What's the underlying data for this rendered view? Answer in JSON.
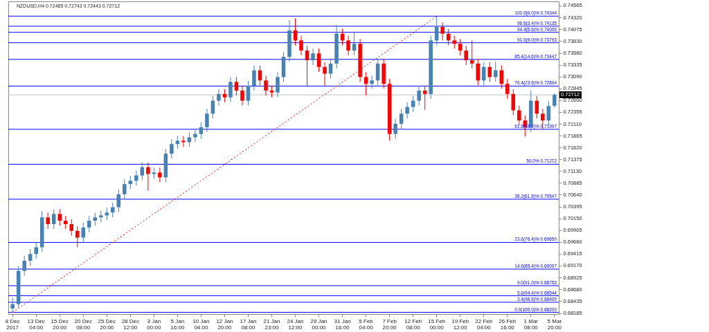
{
  "chart_data": {
    "type": "candlestick",
    "title": "NZDUSD,H4  0.72485 0.72743 0.72443 0.72712",
    "categories": [
      "8 Dec 2017",
      null,
      null,
      null,
      "13 Dec 04:00",
      null,
      null,
      null,
      "15 Dec 20:00",
      null,
      null,
      null,
      "20 Dec 08:00",
      null,
      null,
      null,
      "25 Dec 20:00",
      null,
      null,
      null,
      "28 Dec 12:00",
      null,
      null,
      null,
      "3 Jan 00:00",
      null,
      null,
      null,
      "5 Jan 16:00",
      null,
      null,
      null,
      "10 Jan 04:00",
      null,
      null,
      null,
      "12 Jan 20:00",
      null,
      null,
      null,
      "17 Jan 08:00",
      null,
      null,
      null,
      "21 Jan 23:00",
      null,
      null,
      null,
      "24 Jan 12:00",
      null,
      null,
      null,
      "29 Jan 00:00",
      null,
      null,
      null,
      "31 Jan 16:00",
      null,
      null,
      null,
      "5 Feb 04:00",
      null,
      null,
      null,
      "7 Feb 20:00",
      null,
      null,
      null,
      "12 Feb 08:00",
      null,
      null,
      null,
      "15 Feb 00:00",
      null,
      null,
      null,
      "19 Feb 12:00",
      null,
      null,
      null,
      "22 Feb 04:00",
      null,
      null,
      null,
      "26 Feb 16:00",
      null,
      null,
      null,
      "1 Mar 08:00",
      null,
      null,
      null,
      "5 Mar 20:00"
    ],
    "ohlc": [
      [
        0.6828,
        0.685,
        0.682,
        0.6837
      ],
      [
        0.6837,
        0.6916,
        0.683,
        0.6906
      ],
      [
        0.6906,
        0.6937,
        0.6896,
        0.6927
      ],
      [
        0.6927,
        0.6951,
        0.6917,
        0.6941
      ],
      [
        0.6941,
        0.6965,
        0.6931,
        0.6955
      ],
      [
        0.6955,
        0.703,
        0.6945,
        0.7017
      ],
      [
        0.7017,
        0.7027,
        0.6993,
        0.7003
      ],
      [
        0.7003,
        0.7034,
        0.6993,
        0.7024
      ],
      [
        0.7024,
        0.7034,
        0.7,
        0.701
      ],
      [
        0.701,
        0.702,
        0.6993,
        0.7003
      ],
      [
        0.7003,
        0.7013,
        0.6979,
        0.6989
      ],
      [
        0.6989,
        0.6999,
        0.6955,
        0.6975
      ],
      [
        0.6975,
        0.7006,
        0.6965,
        0.6996
      ],
      [
        0.6996,
        0.702,
        0.6986,
        0.701
      ],
      [
        0.701,
        0.7027,
        0.7,
        0.7017
      ],
      [
        0.7017,
        0.7031,
        0.7007,
        0.7021
      ],
      [
        0.7021,
        0.7037,
        0.7011,
        0.7027
      ],
      [
        0.7027,
        0.7048,
        0.7017,
        0.7038
      ],
      [
        0.7038,
        0.7075,
        0.7028,
        0.7065
      ],
      [
        0.7065,
        0.7096,
        0.7055,
        0.7086
      ],
      [
        0.7086,
        0.7103,
        0.7076,
        0.7093
      ],
      [
        0.7093,
        0.7114,
        0.7083,
        0.7104
      ],
      [
        0.7104,
        0.7131,
        0.7094,
        0.7121
      ],
      [
        0.7121,
        0.7131,
        0.7072,
        0.7107
      ],
      [
        0.7107,
        0.712,
        0.7097,
        0.711
      ],
      [
        0.711,
        0.712,
        0.709,
        0.71
      ],
      [
        0.71,
        0.7159,
        0.709,
        0.7149
      ],
      [
        0.7149,
        0.7179,
        0.7139,
        0.7169
      ],
      [
        0.7169,
        0.7186,
        0.7159,
        0.7176
      ],
      [
        0.7176,
        0.7186,
        0.7163,
        0.7173
      ],
      [
        0.7173,
        0.7193,
        0.7163,
        0.7183
      ],
      [
        0.7183,
        0.72,
        0.7173,
        0.719
      ],
      [
        0.719,
        0.7214,
        0.718,
        0.7204
      ],
      [
        0.7204,
        0.7242,
        0.7194,
        0.7232
      ],
      [
        0.7232,
        0.7269,
        0.7222,
        0.7259
      ],
      [
        0.7259,
        0.7283,
        0.7249,
        0.7273
      ],
      [
        0.7273,
        0.7283,
        0.7256,
        0.7266
      ],
      [
        0.7266,
        0.7308,
        0.7256,
        0.7298
      ],
      [
        0.7298,
        0.7308,
        0.727,
        0.728
      ],
      [
        0.728,
        0.729,
        0.7249,
        0.7259
      ],
      [
        0.7259,
        0.73,
        0.7249,
        0.729
      ],
      [
        0.729,
        0.7332,
        0.728,
        0.7322
      ],
      [
        0.7322,
        0.7332,
        0.7291,
        0.7301
      ],
      [
        0.7301,
        0.7311,
        0.727,
        0.728
      ],
      [
        0.728,
        0.729,
        0.7266,
        0.7276
      ],
      [
        0.7276,
        0.7318,
        0.7266,
        0.7308
      ],
      [
        0.7308,
        0.736,
        0.7298,
        0.735
      ],
      [
        0.735,
        0.7426,
        0.734,
        0.7405
      ],
      [
        0.7405,
        0.743,
        0.7374,
        0.7384
      ],
      [
        0.7384,
        0.7394,
        0.7353,
        0.7363
      ],
      [
        0.7363,
        0.7373,
        0.729,
        0.7343
      ],
      [
        0.7343,
        0.7367,
        0.7333,
        0.7357
      ],
      [
        0.7357,
        0.7367,
        0.7319,
        0.7329
      ],
      [
        0.7329,
        0.7339,
        0.729,
        0.7315
      ],
      [
        0.7315,
        0.7346,
        0.7305,
        0.7336
      ],
      [
        0.7336,
        0.7416,
        0.7326,
        0.7398
      ],
      [
        0.7398,
        0.7408,
        0.7374,
        0.7384
      ],
      [
        0.7384,
        0.7394,
        0.7353,
        0.7363
      ],
      [
        0.7363,
        0.74,
        0.7353,
        0.7377
      ],
      [
        0.7377,
        0.7387,
        0.7298,
        0.7308
      ],
      [
        0.7308,
        0.7318,
        0.727,
        0.7294
      ],
      [
        0.7294,
        0.7311,
        0.7284,
        0.7301
      ],
      [
        0.7301,
        0.7346,
        0.7291,
        0.7336
      ],
      [
        0.7336,
        0.7346,
        0.7284,
        0.7294
      ],
      [
        0.7294,
        0.7304,
        0.7176,
        0.719
      ],
      [
        0.719,
        0.7221,
        0.718,
        0.7211
      ],
      [
        0.7211,
        0.7242,
        0.7201,
        0.7232
      ],
      [
        0.7232,
        0.7256,
        0.7222,
        0.7246
      ],
      [
        0.7246,
        0.7269,
        0.7236,
        0.7259
      ],
      [
        0.7259,
        0.729,
        0.7249,
        0.728
      ],
      [
        0.728,
        0.729,
        0.724,
        0.7273
      ],
      [
        0.7273,
        0.7394,
        0.7263,
        0.7384
      ],
      [
        0.7384,
        0.7434,
        0.7374,
        0.7412
      ],
      [
        0.7412,
        0.7422,
        0.7384,
        0.7398
      ],
      [
        0.7398,
        0.7408,
        0.7374,
        0.7384
      ],
      [
        0.7384,
        0.7394,
        0.7367,
        0.7377
      ],
      [
        0.7377,
        0.7387,
        0.7353,
        0.7363
      ],
      [
        0.7363,
        0.7373,
        0.7333,
        0.7343
      ],
      [
        0.7343,
        0.7384,
        0.7326,
        0.7336
      ],
      [
        0.7336,
        0.7346,
        0.7291,
        0.7301
      ],
      [
        0.7301,
        0.7339,
        0.7291,
        0.7329
      ],
      [
        0.7329,
        0.7339,
        0.7298,
        0.7308
      ],
      [
        0.7308,
        0.734,
        0.7298,
        0.7322
      ],
      [
        0.7322,
        0.7332,
        0.7284,
        0.7294
      ],
      [
        0.7294,
        0.7304,
        0.7263,
        0.7273
      ],
      [
        0.7273,
        0.7283,
        0.7229,
        0.7239
      ],
      [
        0.7239,
        0.7249,
        0.7208,
        0.7218
      ],
      [
        0.7218,
        0.7228,
        0.7185,
        0.7204
      ],
      [
        0.7204,
        0.728,
        0.7194,
        0.7259
      ],
      [
        0.7259,
        0.7269,
        0.7222,
        0.7232
      ],
      [
        0.7232,
        0.7242,
        0.72,
        0.7218
      ],
      [
        0.7218,
        0.7258,
        0.7208,
        0.7248
      ],
      [
        0.72485,
        0.72743,
        0.72443,
        0.72712
      ]
    ],
    "colors": [
      "#4682b4",
      "#4682b4",
      "#4682b4",
      "#4682b4",
      "#4682b4",
      "#4682b4",
      "#ff0000",
      "#4682b4",
      "#ff0000",
      "#ff0000",
      "#ff0000",
      "#ff0000",
      "#4682b4",
      "#4682b4",
      "#4682b4",
      "#4682b4",
      "#4682b4",
      "#4682b4",
      "#4682b4",
      "#4682b4",
      "#4682b4",
      "#4682b4",
      "#4682b4",
      "#ff0000",
      "#4682b4",
      "#ff0000",
      "#4682b4",
      "#4682b4",
      "#4682b4",
      "#ff0000",
      "#4682b4",
      "#4682b4",
      "#4682b4",
      "#4682b4",
      "#4682b4",
      "#4682b4",
      "#ff0000",
      "#4682b4",
      "#ff0000",
      "#ff0000",
      "#4682b4",
      "#4682b4",
      "#ff0000",
      "#ff0000",
      "#ff0000",
      "#4682b4",
      "#4682b4",
      "#4682b4",
      "#ff0000",
      "#ff0000",
      "#ff0000",
      "#4682b4",
      "#ff0000",
      "#ff0000",
      "#4682b4",
      "#4682b4",
      "#ff0000",
      "#ff0000",
      "#4682b4",
      "#ff0000",
      "#ff0000",
      "#4682b4",
      "#4682b4",
      "#ff0000",
      "#ff0000",
      "#4682b4",
      "#4682b4",
      "#4682b4",
      "#4682b4",
      "#4682b4",
      "#ff0000",
      "#4682b4",
      "#4682b4",
      "#ff0000",
      "#ff0000",
      "#ff0000",
      "#ff0000",
      "#ff0000",
      "#ff0000",
      "#ff0000",
      "#4682b4",
      "#ff0000",
      "#4682b4",
      "#ff0000",
      "#ff0000",
      "#ff0000",
      "#ff0000",
      "#ff0000",
      "#4682b4",
      "#ff0000",
      "#ff0000",
      "#4682b4",
      "#4682b4"
    ],
    "series": [
      {
        "type": "line",
        "x": [
          "8 Dec 2017",
          "15 Feb 00:00"
        ],
        "values": [
          0.682,
          0.7434
        ],
        "color": "#ff0000",
        "line_style": "dotted"
      }
    ],
    "ylim": [
      0.68165,
      0.7465
    ],
    "yticks": [
      0.68185,
      0.68435,
      {
        "value": 0.6868,
        "label": "0.68680"
      },
      0.68925,
      {
        "value": 0.6917,
        "label": "0.69170"
      },
      0.69415,
      {
        "value": 0.6966,
        "label": "0.69660"
      },
      0.69905,
      {
        "value": 0.7015,
        "label": "0.70150"
      },
      0.70395,
      {
        "value": 0.7064,
        "label": "0.70640"
      },
      0.70885,
      {
        "value": 0.7113,
        "label": "0.71130"
      },
      0.71375,
      {
        "value": 0.7162,
        "label": "0.71620"
      },
      0.71865,
      {
        "value": 0.7211,
        "label": "0.72110"
      },
      0.72355,
      {
        "value": 0.726,
        "label": "0.72600"
      },
      0.72845,
      {
        "value": 0.7309,
        "label": "0.73090"
      },
      0.73335,
      {
        "value": 0.7358,
        "label": "0.73580"
      },
      {
        "value": 0.7383,
        "label": "0.73830"
      },
      0.74075,
      {
        "value": 0.7432,
        "label": "0.74320"
      },
      0.74565
    ],
    "ref_lines": [
      {
        "axis": "y",
        "value": 0.74344,
        "label": "100.0(0.0)% 0.74344",
        "color": "#0000ff"
      },
      {
        "axis": "y",
        "value": 0.74135,
        "label": "96.6(3.4)% 0.74135",
        "color": "#0000ff"
      },
      {
        "axis": "y",
        "value": 0.74009,
        "label": "94.4(5.6)% 0.74009",
        "color": "#0000ff"
      },
      {
        "axis": "y",
        "value": 0.73793,
        "label": "91.0(9.0)% 0.73793",
        "color": "#0000ff"
      },
      {
        "axis": "y",
        "value": 0.73447,
        "label": "85.4(14.6)% 0.73447",
        "color": "#0000ff"
      },
      {
        "axis": "y",
        "value": 0.72894,
        "label": "76.4(23.6)% 0.72894",
        "color": "#0000ff"
      },
      {
        "axis": "y",
        "value": 0.71997,
        "label": "61.8(38.2)% 0.71997",
        "color": "#0000ff"
      },
      {
        "axis": "y",
        "value": 0.71272,
        "label": "50.0% 0.71272",
        "color": "#0000ff"
      },
      {
        "axis": "y",
        "value": 0.70547,
        "label": "38.2(61.8)% 0.70547",
        "color": "#0000ff"
      },
      {
        "axis": "y",
        "value": 0.6965,
        "label": "23.6(76.4)% 0.69650",
        "color": "#0000ff"
      },
      {
        "axis": "y",
        "value": 0.69097,
        "label": "14.6(85.4)% 0.69097",
        "color": "#0000ff"
      },
      {
        "axis": "y",
        "value": 0.68753,
        "label": "9.0(91.0)% 0.68753",
        "color": "#0000ff"
      },
      {
        "axis": "y",
        "value": 0.68544,
        "label": "5.6(94.4)% 0.68544",
        "color": "#0000ff"
      },
      {
        "axis": "y",
        "value": 0.68409,
        "label": "3.4(96.6)% 0.68409",
        "color": "#0000ff"
      },
      {
        "axis": "y",
        "value": 0.682,
        "label": "0.0(100.0)% 0.68200",
        "color": "#0000ff"
      },
      {
        "axis": "y",
        "value": 0.72712,
        "label": "0.72712",
        "color": "#c0c0c0"
      }
    ]
  }
}
